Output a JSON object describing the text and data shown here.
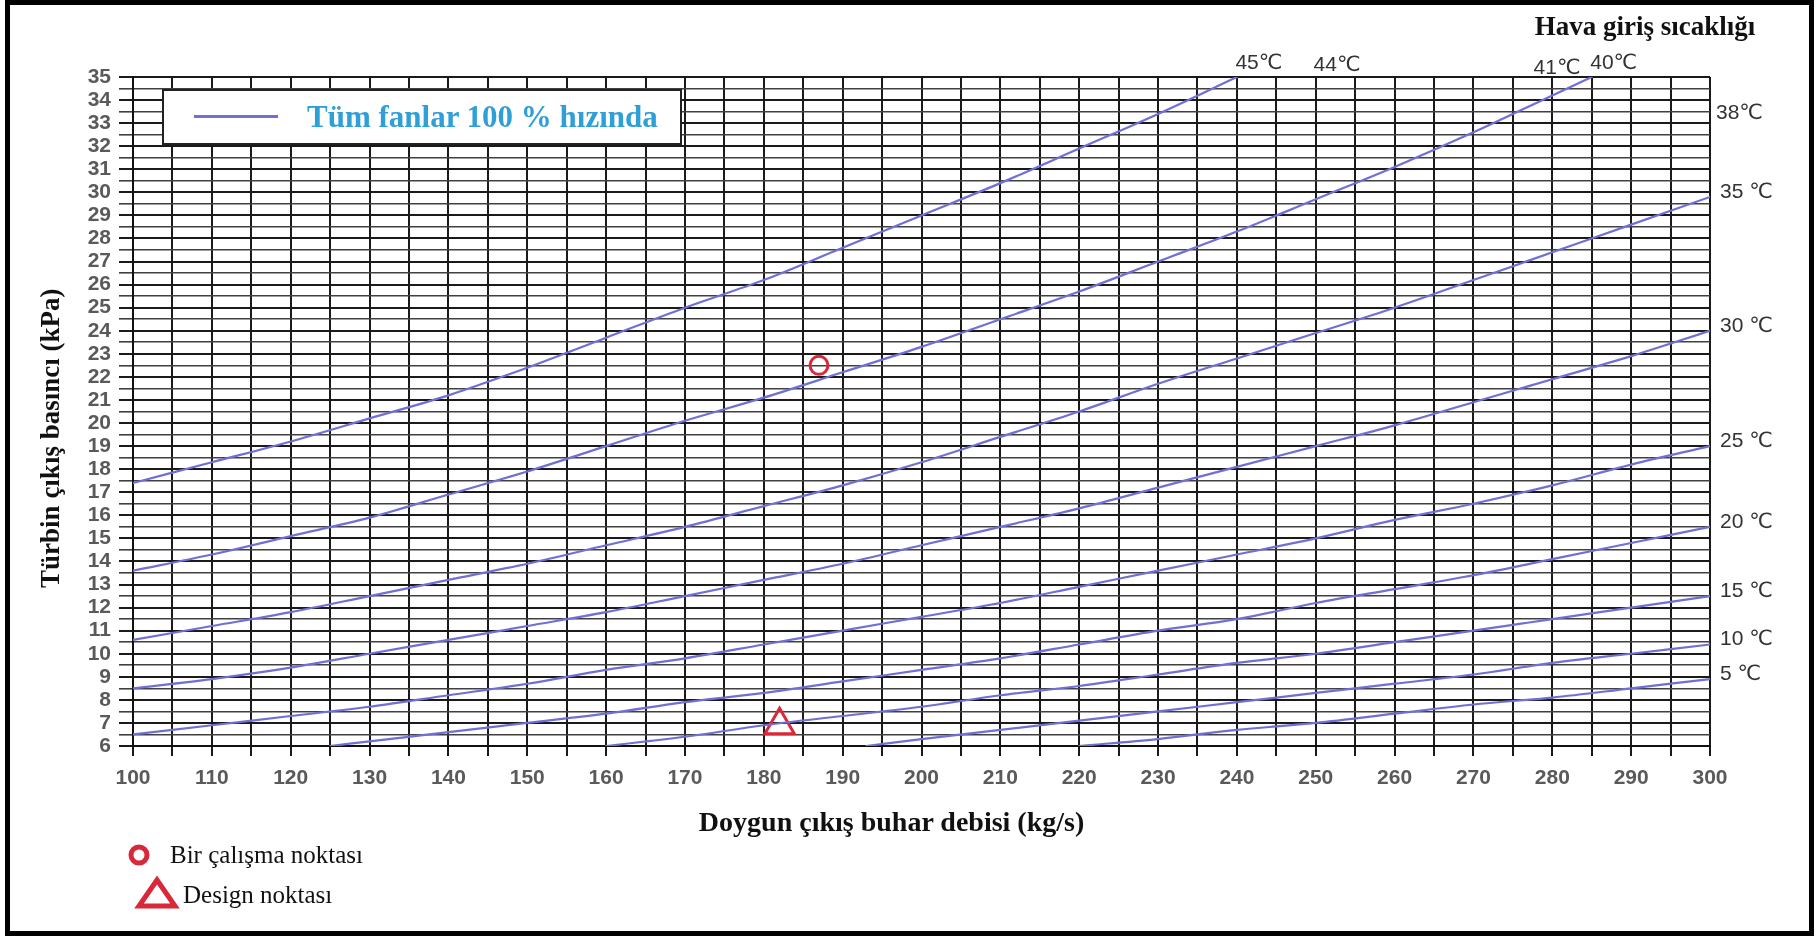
{
  "chart_data": {
    "type": "line",
    "xlabel": "Doygun çıkış buhar debisi (kg/s)",
    "ylabel": "Türbin çıkış basıncı (kPa)",
    "xlim": [
      100,
      300
    ],
    "ylim": [
      6,
      35
    ],
    "xticks": [
      100,
      {
        "value": 105,
        "label": null
      },
      110,
      {
        "value": 115,
        "label": null
      },
      120,
      {
        "value": 125,
        "label": null
      },
      130,
      {
        "value": 135,
        "label": null
      },
      140,
      {
        "value": 145,
        "label": null
      },
      150,
      {
        "value": 155,
        "label": null
      },
      160,
      {
        "value": 165,
        "label": null
      },
      170,
      {
        "value": 175,
        "label": null
      },
      180,
      {
        "value": 185,
        "label": null
      },
      190,
      {
        "value": 195,
        "label": null
      },
      200,
      {
        "value": 205,
        "label": null
      },
      210,
      {
        "value": 215,
        "label": null
      },
      220,
      {
        "value": 225,
        "label": null
      },
      230,
      {
        "value": 235,
        "label": null
      },
      240,
      {
        "value": 245,
        "label": null
      },
      250,
      {
        "value": 255,
        "label": null
      },
      260,
      {
        "value": 265,
        "label": null
      },
      270,
      {
        "value": 275,
        "label": null
      },
      280,
      {
        "value": 285,
        "label": null
      },
      290,
      {
        "value": 295,
        "label": null
      },
      300
    ],
    "yticks": [
      6,
      {
        "value": 6.5,
        "label": null
      },
      7,
      {
        "value": 7.5,
        "label": null
      },
      8,
      {
        "value": 8.5,
        "label": null
      },
      9,
      {
        "value": 9.5,
        "label": null
      },
      10,
      {
        "value": 10.5,
        "label": null
      },
      11,
      {
        "value": 11.5,
        "label": null
      },
      12,
      {
        "value": 12.5,
        "label": null
      },
      13,
      {
        "value": 13.5,
        "label": null
      },
      14,
      {
        "value": 14.5,
        "label": null
      },
      15,
      {
        "value": 15.5,
        "label": null
      },
      16,
      {
        "value": 16.5,
        "label": null
      },
      17,
      {
        "value": 17.5,
        "label": null
      },
      18,
      {
        "value": 18.5,
        "label": null
      },
      19,
      {
        "value": 19.5,
        "label": null
      },
      20,
      {
        "value": 20.5,
        "label": null
      },
      21,
      {
        "value": 21.5,
        "label": null
      },
      22,
      {
        "value": 22.5,
        "label": null
      },
      23,
      {
        "value": 23.5,
        "label": null
      },
      24,
      {
        "value": 24.5,
        "label": null
      },
      25,
      {
        "value": 25.5,
        "label": null
      },
      26,
      {
        "value": 26.5,
        "label": null
      },
      27,
      {
        "value": 27.5,
        "label": null
      },
      28,
      {
        "value": 28.5,
        "label": null
      },
      29,
      {
        "value": 29.5,
        "label": null
      },
      30,
      {
        "value": 30.5,
        "label": null
      },
      31,
      {
        "value": 31.5,
        "label": null
      },
      32,
      {
        "value": 32.5,
        "label": null
      },
      33,
      {
        "value": 33.5,
        "label": null
      },
      34,
      {
        "value": 34.5,
        "label": null
      },
      35
    ],
    "grid": true,
    "legend": "bottom left",
    "annotations": [
      "Tüm fanlar 100 % hızında",
      "Hava giriş sıcaklığı",
      "44℃",
      "41℃",
      "38℃"
    ],
    "series": [
      {
        "name": "45℃",
        "color": "#6f6fd6",
        "x": [
          100,
          110,
          120,
          130,
          140,
          150,
          160,
          170,
          180,
          190,
          200,
          210,
          220,
          230,
          240
        ],
        "values": [
          17.4,
          18.3,
          19.2,
          20.2,
          21.2,
          22.4,
          23.7,
          25.0,
          26.2,
          27.6,
          29.0,
          30.4,
          31.9,
          33.4,
          35.0
        ]
      },
      {
        "name": "40℃",
        "color": "#6f6fd6",
        "x": [
          100,
          110,
          120,
          130,
          140,
          150,
          160,
          170,
          180,
          190,
          200,
          210,
          220,
          230,
          240,
          250,
          260,
          270,
          280,
          285
        ],
        "values": [
          13.6,
          14.3,
          15.1,
          15.9,
          16.9,
          17.9,
          19.0,
          20.1,
          21.1,
          22.2,
          23.3,
          24.5,
          25.7,
          27.0,
          28.3,
          29.7,
          31.1,
          32.6,
          34.2,
          35.0
        ]
      },
      {
        "name": "35 ℃",
        "color": "#6f6fd6",
        "x": [
          100,
          110,
          120,
          130,
          140,
          150,
          160,
          170,
          180,
          190,
          200,
          210,
          220,
          230,
          240,
          250,
          260,
          270,
          280,
          290,
          300
        ],
        "values": [
          10.6,
          11.2,
          11.8,
          12.5,
          13.2,
          13.9,
          14.7,
          15.5,
          16.4,
          17.3,
          18.3,
          19.4,
          20.5,
          21.7,
          22.8,
          23.9,
          25.0,
          26.2,
          27.4,
          28.6,
          29.8
        ]
      },
      {
        "name": "30 ℃",
        "color": "#6f6fd6",
        "x": [
          100,
          110,
          120,
          130,
          140,
          150,
          160,
          170,
          180,
          190,
          200,
          210,
          220,
          230,
          240,
          250,
          260,
          270,
          280,
          290,
          300
        ],
        "values": [
          8.5,
          8.9,
          9.4,
          10.0,
          10.6,
          11.2,
          11.8,
          12.5,
          13.2,
          13.9,
          14.7,
          15.5,
          16.3,
          17.2,
          18.1,
          19.0,
          19.9,
          20.9,
          21.9,
          22.9,
          24.0
        ]
      },
      {
        "name": "25 ℃",
        "color": "#6f6fd6",
        "x": [
          100,
          110,
          120,
          130,
          140,
          150,
          160,
          170,
          180,
          190,
          200,
          210,
          220,
          230,
          240,
          250,
          260,
          270,
          280,
          290,
          300
        ],
        "values": [
          6.5,
          6.9,
          7.3,
          7.7,
          8.2,
          8.7,
          9.3,
          9.8,
          10.4,
          11.0,
          11.6,
          12.2,
          12.9,
          13.6,
          14.3,
          15.0,
          15.8,
          16.5,
          17.3,
          18.2,
          19.0
        ]
      },
      {
        "name": "20 ℃",
        "color": "#6f6fd6",
        "x": [
          125,
          130,
          140,
          150,
          160,
          170,
          180,
          190,
          200,
          210,
          220,
          230,
          240,
          250,
          260,
          270,
          280,
          290,
          300
        ],
        "values": [
          6.0,
          6.2,
          6.6,
          7.0,
          7.4,
          7.9,
          8.3,
          8.8,
          9.3,
          9.8,
          10.4,
          11.0,
          11.5,
          12.2,
          12.8,
          13.4,
          14.1,
          14.8,
          15.5
        ]
      },
      {
        "name": "15 ℃",
        "color": "#6f6fd6",
        "x": [
          160,
          170,
          180,
          190,
          200,
          210,
          220,
          230,
          240,
          250,
          260,
          270,
          280,
          290,
          300
        ],
        "values": [
          6.0,
          6.4,
          6.9,
          7.3,
          7.7,
          8.2,
          8.6,
          9.1,
          9.6,
          10.0,
          10.5,
          11.0,
          11.5,
          12.0,
          12.5
        ]
      },
      {
        "name": "10 ℃",
        "color": "#6f6fd6",
        "x": [
          193,
          200,
          210,
          220,
          230,
          240,
          250,
          260,
          270,
          280,
          290,
          300
        ],
        "values": [
          6.0,
          6.3,
          6.7,
          7.1,
          7.5,
          7.9,
          8.3,
          8.7,
          9.1,
          9.6,
          10.0,
          10.4
        ]
      },
      {
        "name": "5 ℃",
        "color": "#6f6fd6",
        "x": [
          220,
          230,
          240,
          250,
          260,
          270,
          280,
          290,
          300
        ],
        "values": [
          6.0,
          6.3,
          6.7,
          7.0,
          7.4,
          7.8,
          8.1,
          8.5,
          8.9
        ]
      },
      {
        "type": "scatter",
        "name": "Bir çalışma noktası",
        "color": "#d8283a",
        "marker": "circle",
        "x": [
          187
        ],
        "values": [
          22.5
        ]
      },
      {
        "type": "scatter",
        "name": "Design noktası",
        "color": "#d8283a",
        "marker": "triangle",
        "x": [
          182
        ],
        "values": [
          6.9
        ]
      }
    ]
  }
}
